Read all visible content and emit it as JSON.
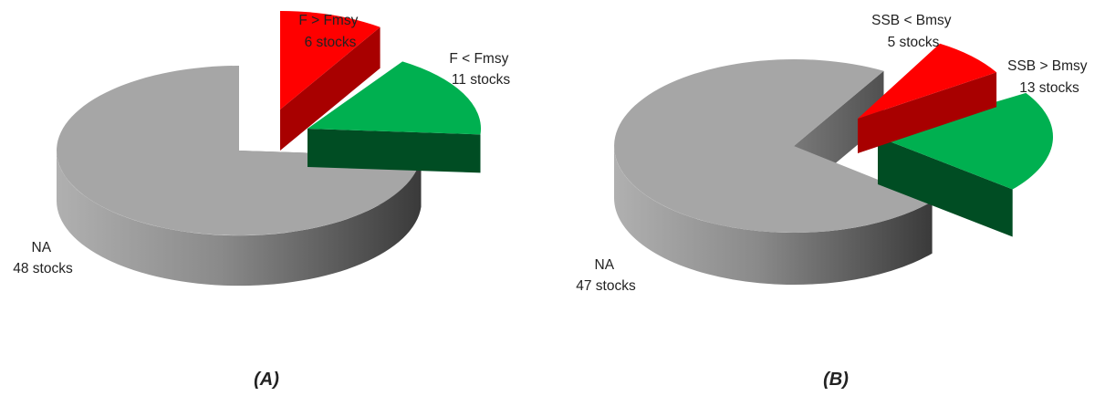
{
  "chart_data": [
    {
      "type": "pie",
      "caption": "(A)",
      "slices": [
        {
          "label": "F > Fmsy",
          "count_text": "6 stocks",
          "value": 6,
          "color": "red"
        },
        {
          "label": "F < Fmsy",
          "count_text": "11 stocks",
          "value": 11,
          "color": "green"
        },
        {
          "label": "NA",
          "count_text": "48 stocks",
          "value": 48,
          "color": "gray"
        }
      ]
    },
    {
      "type": "pie",
      "caption": "(B)",
      "slices": [
        {
          "label": "SSB < Bmsy",
          "count_text": "5 stocks",
          "value": 5,
          "color": "red"
        },
        {
          "label": "SSB > Bmsy",
          "count_text": "13 stocks",
          "value": 13,
          "color": "green"
        },
        {
          "label": "NA",
          "count_text": "47 stocks",
          "value": 47,
          "color": "gray"
        }
      ]
    }
  ],
  "colors": {
    "red_top": "#ff0000",
    "red_side": "#a80000",
    "green_top": "#00b050",
    "green_side": "#004d23",
    "gray_top": "#a6a6a6",
    "gray_side_light": "#a0a0a0",
    "gray_side_dark": "#3e3e3e"
  }
}
